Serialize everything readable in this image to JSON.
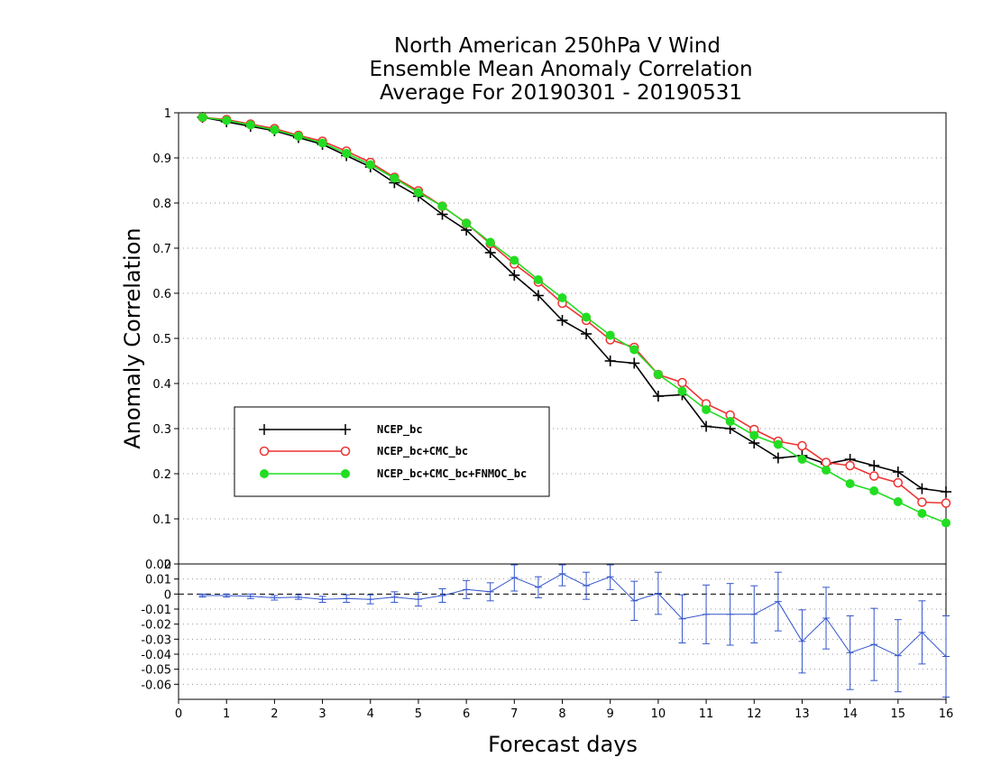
{
  "chart_data": [
    {
      "type": "line",
      "title_lines": [
        "North American 250hPa V Wind",
        "Ensemble Mean Anomaly Correlation",
        "Average For 20190301 - 20190531"
      ],
      "xlabel": "Forecast days",
      "ylabel": "Anomaly Correlation",
      "xlim": [
        0,
        16
      ],
      "ylim": [
        0,
        1
      ],
      "y_ticks": [
        "0",
        "0.1",
        "0.2",
        "0.3",
        "0.4",
        "0.5",
        "0.6",
        "0.7",
        "0.8",
        "0.9",
        "1"
      ],
      "grid": true,
      "legend_position": "left",
      "x": [
        0.5,
        1,
        1.5,
        2,
        2.5,
        3,
        3.5,
        4,
        4.5,
        5,
        5.5,
        6,
        6.5,
        7,
        7.5,
        8,
        8.5,
        9,
        9.5,
        10,
        10.5,
        11,
        11.5,
        12,
        12.5,
        13,
        13.5,
        14,
        14.5,
        15,
        15.5,
        16
      ],
      "series": [
        {
          "name": "NCEP_bc",
          "color": "#000000",
          "marker": "plus",
          "values": [
            0.99,
            0.98,
            0.97,
            0.96,
            0.945,
            0.93,
            0.905,
            0.88,
            0.845,
            0.815,
            0.775,
            0.74,
            0.69,
            0.64,
            0.595,
            0.54,
            0.51,
            0.45,
            0.445,
            0.372,
            0.375,
            0.305,
            0.3,
            0.268,
            0.235,
            0.24,
            0.222,
            0.232,
            0.218,
            0.204,
            0.167,
            0.16
          ]
        },
        {
          "name": "NCEP_bc+CMC_bc",
          "color": "#ee3333",
          "marker": "open-circle",
          "values": [
            0.99,
            0.985,
            0.975,
            0.965,
            0.95,
            0.937,
            0.915,
            0.89,
            0.857,
            0.827,
            0.793,
            0.755,
            0.71,
            0.665,
            0.625,
            0.578,
            0.54,
            0.497,
            0.48,
            0.42,
            0.402,
            0.355,
            0.33,
            0.298,
            0.272,
            0.262,
            0.225,
            0.218,
            0.195,
            0.18,
            0.137,
            0.135
          ]
        },
        {
          "name": "NCEP_bc+CMC_bc+FNMOC_bc",
          "color": "#22dd22",
          "marker": "filled-circle",
          "values": [
            0.99,
            0.983,
            0.973,
            0.962,
            0.948,
            0.933,
            0.91,
            0.885,
            0.855,
            0.823,
            0.793,
            0.755,
            0.713,
            0.673,
            0.63,
            0.59,
            0.547,
            0.507,
            0.475,
            0.42,
            0.383,
            0.342,
            0.316,
            0.285,
            0.265,
            0.232,
            0.208,
            0.178,
            0.162,
            0.138,
            0.112,
            0.091
          ]
        }
      ]
    },
    {
      "type": "line",
      "xlabel": "Forecast days",
      "xlim": [
        0,
        16
      ],
      "x_ticks": [
        "0",
        "1",
        "2",
        "3",
        "4",
        "5",
        "6",
        "7",
        "8",
        "9",
        "10",
        "11",
        "12",
        "13",
        "14",
        "15",
        "16"
      ],
      "ylim": [
        -0.07,
        0.02
      ],
      "y_ticks": [
        "-0.06",
        "-0.05",
        "-0.04",
        "-0.03",
        "-0.02",
        "-0.01",
        "0",
        "0.01",
        "0.02"
      ],
      "grid": true,
      "zero_line": "dashed",
      "x": [
        0.5,
        1,
        1.5,
        2,
        2.5,
        3,
        3.5,
        4,
        4.5,
        5,
        5.5,
        6,
        6.5,
        7,
        7.5,
        8,
        8.5,
        9,
        9.5,
        10,
        10.5,
        11,
        11.5,
        12,
        12.5,
        13,
        13.5,
        14,
        14.5,
        15,
        15.5,
        16
      ],
      "series": [
        {
          "color": "#3355cc",
          "marker": "plus-with-error-bars",
          "values": [
            -0.001,
            -0.001,
            -0.0015,
            -0.0025,
            -0.002,
            -0.0035,
            -0.003,
            -0.0035,
            -0.002,
            -0.0035,
            -0.001,
            0.003,
            0.0015,
            0.011,
            0.0045,
            0.0135,
            0.0055,
            0.0115,
            -0.0045,
            0.0005,
            -0.0165,
            -0.0135,
            -0.0135,
            -0.0135,
            -0.005,
            -0.0315,
            -0.016,
            -0.039,
            -0.0335,
            -0.041,
            -0.0255,
            -0.0415
          ],
          "error": [
            0.001,
            0.001,
            0.0015,
            0.0015,
            0.0015,
            0.002,
            0.0025,
            0.003,
            0.0035,
            0.0045,
            0.0045,
            0.006,
            0.006,
            0.009,
            0.007,
            0.008,
            0.009,
            0.0085,
            0.013,
            0.014,
            0.016,
            0.0195,
            0.0205,
            0.019,
            0.0195,
            0.021,
            0.0205,
            0.0245,
            0.024,
            0.024,
            0.021,
            0.027
          ]
        }
      ]
    }
  ]
}
